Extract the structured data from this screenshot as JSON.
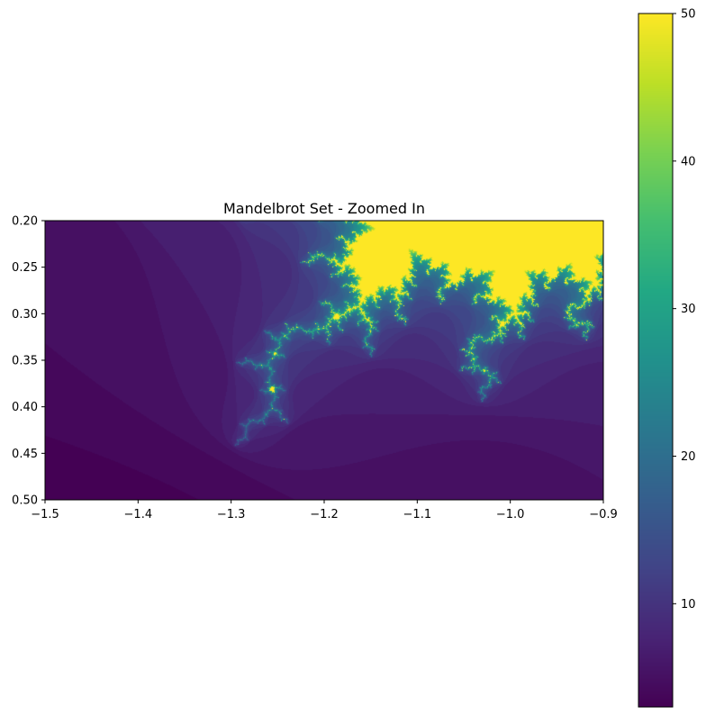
{
  "chart_data": {
    "type": "heatmap",
    "title": "Mandelbrot Set - Zoomed In",
    "xlabel": "",
    "ylabel": "",
    "xlim": [
      -1.5,
      -0.9
    ],
    "ylim": [
      0.5,
      0.2
    ],
    "y_axis_inverted": true,
    "xticks": [
      -1.5,
      -1.4,
      -1.3,
      -1.2,
      -1.1,
      -1.0,
      -0.9
    ],
    "xtick_labels": [
      "−1.5",
      "−1.4",
      "−1.3",
      "−1.2",
      "−1.1",
      "−1.0",
      "−0.9"
    ],
    "yticks": [
      0.2,
      0.25,
      0.3,
      0.35,
      0.4,
      0.45,
      0.5
    ],
    "ytick_labels": [
      "0.20",
      "0.25",
      "0.30",
      "0.35",
      "0.40",
      "0.45",
      "0.50"
    ],
    "max_iter": 50,
    "colormap": "viridis",
    "colorbar": {
      "min": 3,
      "max": 50,
      "ticks": [
        10,
        20,
        30,
        40,
        50
      ],
      "tick_labels": [
        "10",
        "20",
        "30",
        "40",
        "50"
      ],
      "position": "right"
    }
  }
}
